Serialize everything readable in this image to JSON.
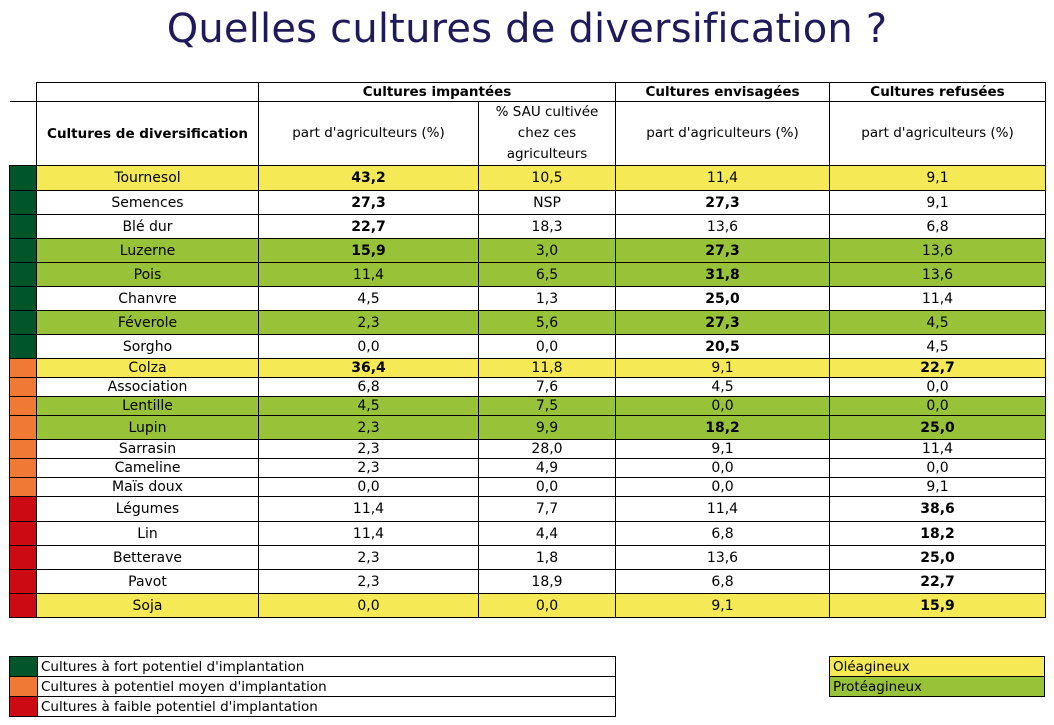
{
  "title": "Quelles cultures de diversification ?",
  "colors": {
    "fort": "#00552a",
    "moyen": "#f07a35",
    "faible": "#cc0a14",
    "oleagineux": "#f5ea55",
    "proteagineux": "#98c238",
    "white": "#ffffff"
  },
  "header": {
    "group_implantees": "Cultures impantées",
    "group_envisagees": "Cultures envisagées",
    "group_refusees": "Cultures refusées",
    "row_header": "Cultures de diversification",
    "col_part_1": "part d'agriculteurs (%)",
    "col_sau": "% SAU cultivée chez ces agriculteurs",
    "col_part_2": "part d'agriculteurs (%)",
    "col_part_3": "part d'agriculteurs (%)"
  },
  "rows": [
    {
      "name": "Tournesol",
      "potentiel": "fort",
      "type": "oleagineux",
      "implantees": "43,2",
      "sau": "10,5",
      "envisagees": "11,4",
      "refusees": "9,1",
      "bold": [
        true,
        false,
        false,
        false
      ]
    },
    {
      "name": "Semences",
      "potentiel": "fort",
      "type": "none",
      "implantees": "27,3",
      "sau": "NSP",
      "envisagees": "27,3",
      "refusees": "9,1",
      "bold": [
        true,
        false,
        true,
        false
      ]
    },
    {
      "name": "Blé dur",
      "potentiel": "fort",
      "type": "none",
      "implantees": "22,7",
      "sau": "18,3",
      "envisagees": "13,6",
      "refusees": "6,8",
      "bold": [
        true,
        false,
        false,
        false
      ]
    },
    {
      "name": "Luzerne",
      "potentiel": "fort",
      "type": "proteagineux",
      "implantees": "15,9",
      "sau": "3,0",
      "envisagees": "27,3",
      "refusees": "13,6",
      "bold": [
        true,
        false,
        true,
        false
      ]
    },
    {
      "name": "Pois",
      "potentiel": "fort",
      "type": "proteagineux",
      "implantees": "11,4",
      "sau": "6,5",
      "envisagees": "31,8",
      "refusees": "13,6",
      "bold": [
        false,
        false,
        true,
        false
      ]
    },
    {
      "name": "Chanvre",
      "potentiel": "fort",
      "type": "none",
      "implantees": "4,5",
      "sau": "1,3",
      "envisagees": "25,0",
      "refusees": "11,4",
      "bold": [
        false,
        false,
        true,
        false
      ]
    },
    {
      "name": "Féverole",
      "potentiel": "fort",
      "type": "proteagineux",
      "implantees": "2,3",
      "sau": "5,6",
      "envisagees": "27,3",
      "refusees": "4,5",
      "bold": [
        false,
        false,
        true,
        false
      ]
    },
    {
      "name": "Sorgho",
      "potentiel": "fort",
      "type": "none",
      "implantees": "0,0",
      "sau": "0,0",
      "envisagees": "20,5",
      "refusees": "4,5",
      "bold": [
        false,
        false,
        true,
        false
      ]
    },
    {
      "name": "Colza",
      "potentiel": "moyen",
      "type": "oleagineux",
      "implantees": "36,4",
      "sau": "11,8",
      "envisagees": "9,1",
      "refusees": "22,7",
      "bold": [
        true,
        false,
        false,
        true
      ]
    },
    {
      "name": "Association",
      "potentiel": "moyen",
      "type": "none",
      "implantees": "6,8",
      "sau": "7,6",
      "envisagees": "4,5",
      "refusees": "0,0",
      "bold": [
        false,
        false,
        false,
        false
      ]
    },
    {
      "name": "Lentille",
      "potentiel": "moyen",
      "type": "proteagineux",
      "implantees": "4,5",
      "sau": "7,5",
      "envisagees": "0,0",
      "refusees": "0,0",
      "bold": [
        false,
        false,
        false,
        false
      ]
    },
    {
      "name": "Lupin",
      "potentiel": "moyen",
      "type": "proteagineux",
      "implantees": "2,3",
      "sau": "9,9",
      "envisagees": "18,2",
      "refusees": "25,0",
      "bold": [
        false,
        false,
        true,
        true
      ]
    },
    {
      "name": "Sarrasin",
      "potentiel": "moyen",
      "type": "none",
      "implantees": "2,3",
      "sau": "28,0",
      "envisagees": "9,1",
      "refusees": "11,4",
      "bold": [
        false,
        false,
        false,
        false
      ]
    },
    {
      "name": "Cameline",
      "potentiel": "moyen",
      "type": "none",
      "implantees": "2,3",
      "sau": "4,9",
      "envisagees": "0,0",
      "refusees": "0,0",
      "bold": [
        false,
        false,
        false,
        false
      ]
    },
    {
      "name": "Maïs doux",
      "potentiel": "moyen",
      "type": "none",
      "implantees": "0,0",
      "sau": "0,0",
      "envisagees": "0,0",
      "refusees": "9,1",
      "bold": [
        false,
        false,
        false,
        false
      ]
    },
    {
      "name": "Légumes",
      "potentiel": "faible",
      "type": "none",
      "implantees": "11,4",
      "sau": "7,7",
      "envisagees": "11,4",
      "refusees": "38,6",
      "bold": [
        false,
        false,
        false,
        true
      ]
    },
    {
      "name": "Lin",
      "potentiel": "faible",
      "type": "none",
      "implantees": "11,4",
      "sau": "4,4",
      "envisagees": "6,8",
      "refusees": "18,2",
      "bold": [
        false,
        false,
        false,
        true
      ]
    },
    {
      "name": "Betterave",
      "potentiel": "faible",
      "type": "none",
      "implantees": "2,3",
      "sau": "1,8",
      "envisagees": "13,6",
      "refusees": "25,0",
      "bold": [
        false,
        false,
        false,
        true
      ]
    },
    {
      "name": "Pavot",
      "potentiel": "faible",
      "type": "none",
      "implantees": "2,3",
      "sau": "18,9",
      "envisagees": "6,8",
      "refusees": "22,7",
      "bold": [
        false,
        false,
        false,
        true
      ]
    },
    {
      "name": "Soja",
      "potentiel": "faible",
      "type": "oleagineux",
      "implantees": "0,0",
      "sau": "0,0",
      "envisagees": "9,1",
      "refusees": "15,9",
      "bold": [
        false,
        false,
        false,
        true
      ]
    }
  ],
  "legend_potentiel": [
    {
      "key": "fort",
      "label": "Cultures à fort potentiel d'implantation"
    },
    {
      "key": "moyen",
      "label": "Cultures à potentiel moyen d'implantation"
    },
    {
      "key": "faible",
      "label": "Cultures à faible potentiel d'implantation"
    }
  ],
  "legend_type": [
    {
      "key": "oleagineux",
      "label": "Oléagineux"
    },
    {
      "key": "proteagineux",
      "label": "Protéagineux"
    }
  ]
}
